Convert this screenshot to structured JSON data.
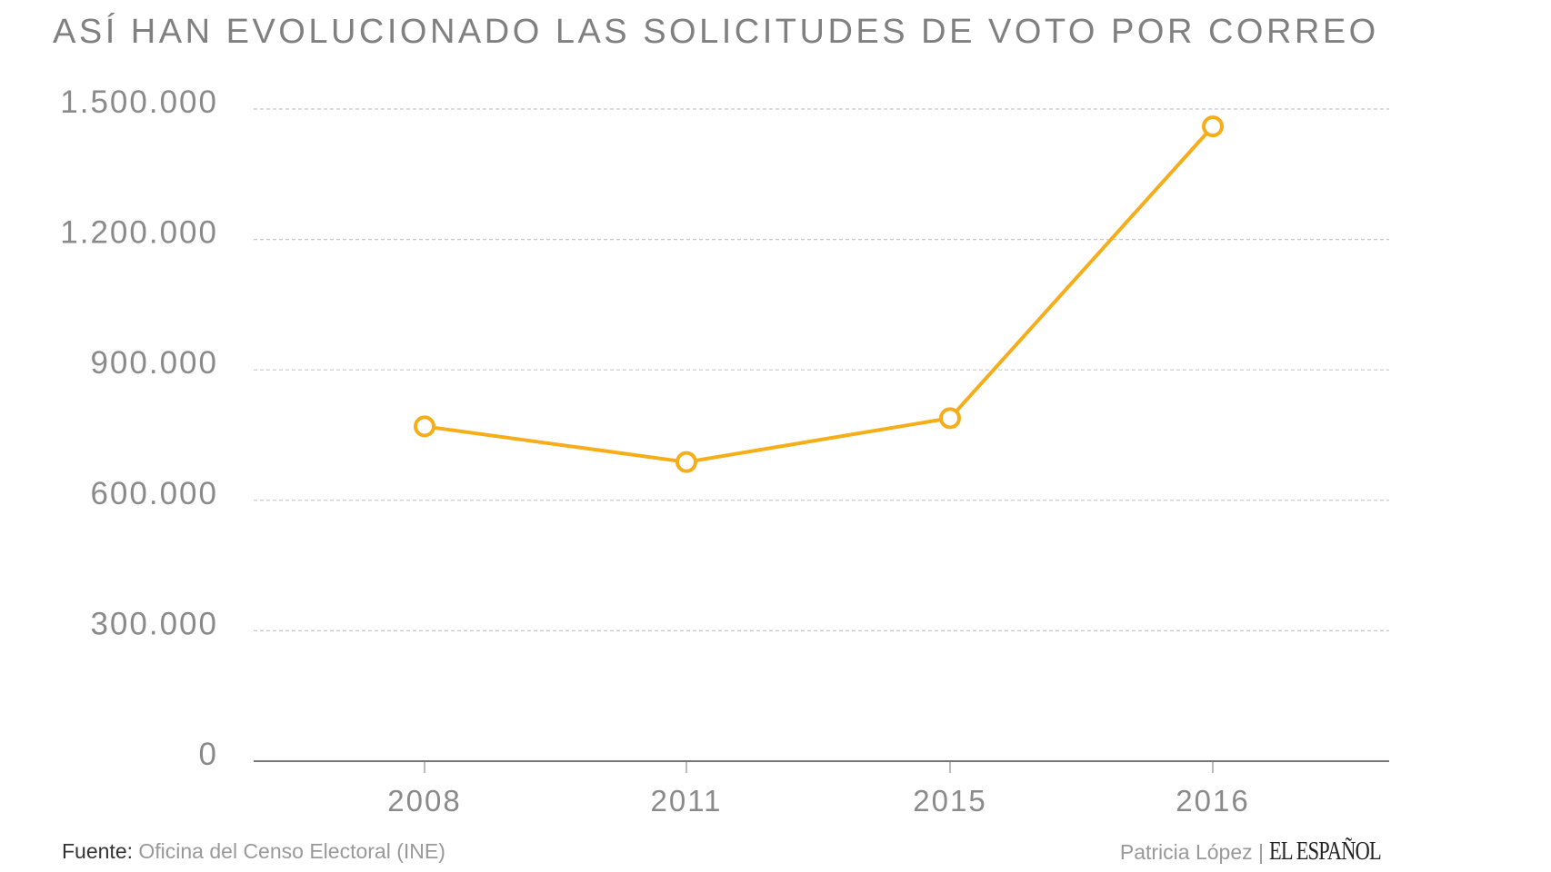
{
  "chart_data": {
    "type": "line",
    "title": "ASÍ HAN EVOLUCIONADO LAS SOLICITUDES DE VOTO POR CORREO",
    "categories": [
      "2008",
      "2011",
      "2015",
      "2016"
    ],
    "series": [
      {
        "name": "Solicitudes de voto por correo",
        "values": [
          770000,
          688000,
          789000,
          1460000
        ],
        "color": "#F5AE1A"
      }
    ],
    "ylim": [
      0,
      1500000
    ],
    "yticks": [
      0,
      300000,
      600000,
      900000,
      1200000,
      1500000
    ],
    "ytick_labels": [
      "0",
      "300.000",
      "600.000",
      "900.000",
      "1.200.000",
      "1.500.000"
    ],
    "grid": true,
    "xlabel": "",
    "ylabel": ""
  },
  "footer": {
    "source_label": "Fuente:",
    "source_text": "Oficina del Censo Electoral (INE)",
    "author": "Patricia López |",
    "logo": "EL ESPAÑOL"
  }
}
